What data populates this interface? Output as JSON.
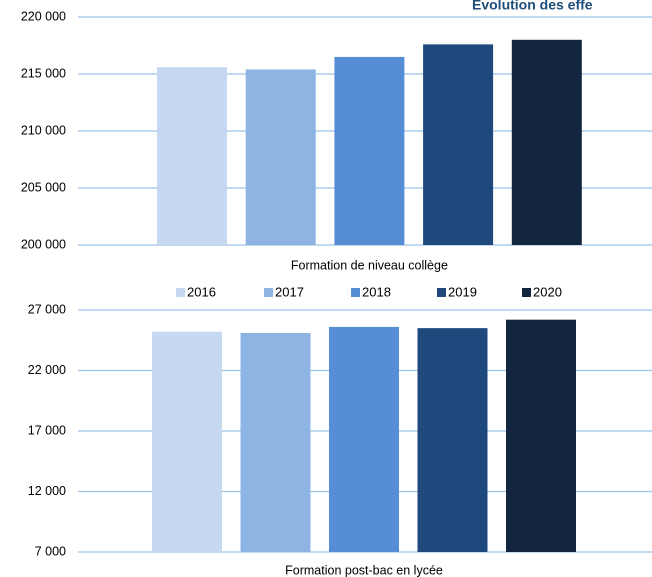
{
  "title": "Evolution des effe",
  "legend": {
    "items": [
      {
        "label": "2016",
        "color": "#c6d9f1"
      },
      {
        "label": "2017",
        "color": "#8eb4e3"
      },
      {
        "label": "2018",
        "color": "#558ed5"
      },
      {
        "label": "2019",
        "color": "#1f497d"
      },
      {
        "label": "2020",
        "color": "#132640"
      }
    ]
  },
  "chart_data": [
    {
      "type": "bar",
      "categories": [
        "Formation de niveau collège"
      ],
      "series": [
        {
          "name": "2016",
          "values": [
            215600
          ]
        },
        {
          "name": "2017",
          "values": [
            215400
          ]
        },
        {
          "name": "2018",
          "values": [
            216500
          ]
        },
        {
          "name": "2019",
          "values": [
            217600
          ]
        },
        {
          "name": "2020",
          "values": [
            218000
          ]
        }
      ],
      "ylim": [
        200000,
        220000
      ],
      "yticks": [
        200000,
        205000,
        210000,
        215000,
        220000
      ],
      "ytick_labels": [
        "200 000",
        "205 000",
        "210 000",
        "215 000",
        "220 000"
      ],
      "grid": true
    },
    {
      "type": "bar",
      "categories": [
        "Formation post-bac en lycée"
      ],
      "series": [
        {
          "name": "2016",
          "values": [
            25200
          ]
        },
        {
          "name": "2017",
          "values": [
            25100
          ]
        },
        {
          "name": "2018",
          "values": [
            25600
          ]
        },
        {
          "name": "2019",
          "values": [
            25500
          ]
        },
        {
          "name": "2020",
          "values": [
            26200
          ]
        }
      ],
      "ylim": [
        7000,
        27000
      ],
      "yticks": [
        7000,
        12000,
        17000,
        22000,
        27000
      ],
      "ytick_labels": [
        "7 000",
        "12 000",
        "17 000",
        "22 000",
        "27 000"
      ],
      "grid": true
    }
  ]
}
